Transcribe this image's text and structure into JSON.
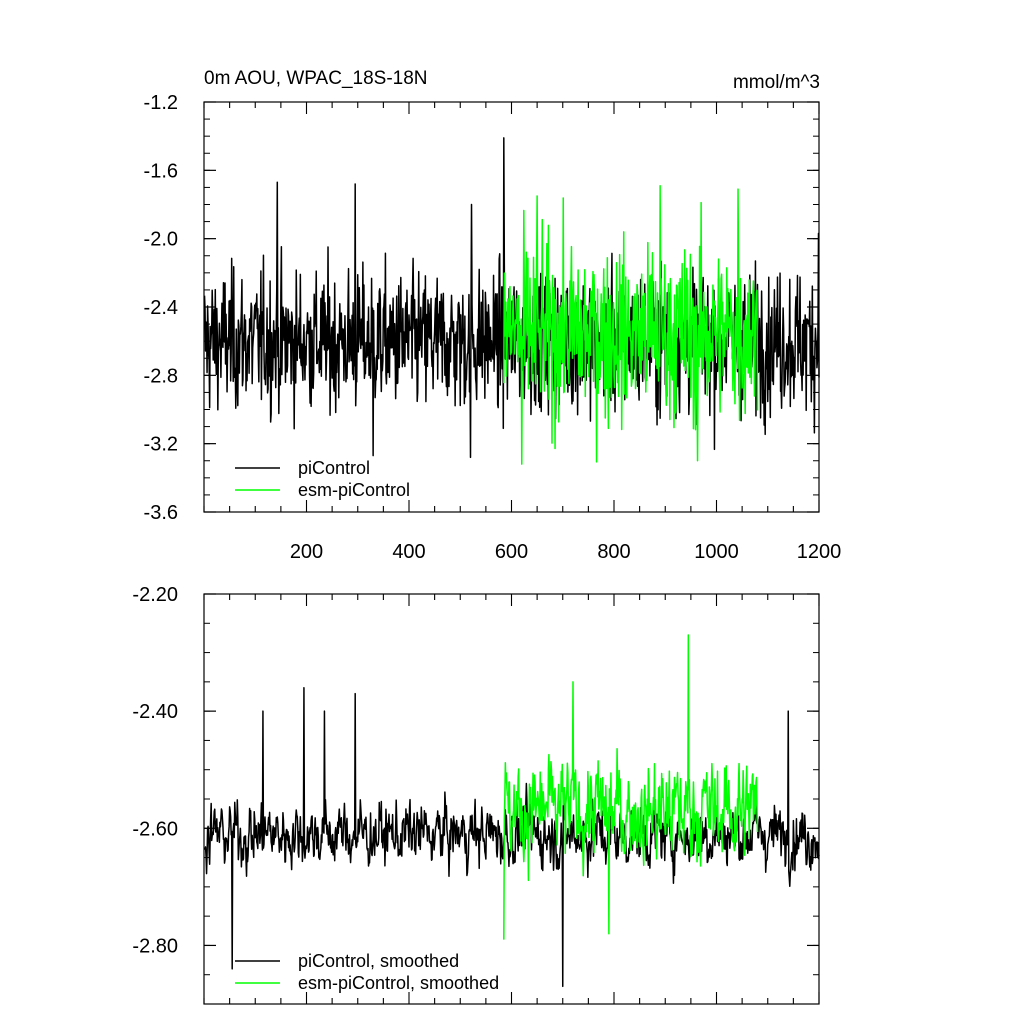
{
  "chart_data": [
    {
      "type": "line",
      "title": "0m AOU, WPAC_18S-18N",
      "units": "mmol/m^3",
      "xlim": [
        0,
        1200
      ],
      "ylim": [
        -3.6,
        -1.2
      ],
      "x_ticks": [
        200,
        400,
        600,
        800,
        1000,
        1200
      ],
      "x_tick_labels": [
        "200",
        "400",
        "600",
        "800",
        "1000",
        "1200"
      ],
      "y_ticks": [
        -1.2,
        -1.6,
        -2.0,
        -2.4,
        -2.8,
        -3.2,
        -3.6
      ],
      "y_tick_labels": [
        "-1.2",
        "-1.6",
        "-2.0",
        "-2.4",
        "-2.8",
        "-3.2",
        "-3.6"
      ],
      "legend_position": "bottom-left",
      "grid": false,
      "series": [
        {
          "name": "piControl",
          "color": "#000000",
          "x_range": [
            1,
            1200
          ],
          "mean": -2.6,
          "spread": 0.2,
          "spikes": [
            [
              143,
              -1.67
            ],
            [
              295,
              -1.68
            ],
            [
              585,
              -1.41
            ],
            [
              522,
              -1.8
            ],
            [
              1199,
              -1.97
            ],
            [
              330,
              -3.27
            ],
            [
              520,
              -3.28
            ]
          ]
        },
        {
          "name": "esm-piControl",
          "color": "#00ff00",
          "x_range": [
            585,
            1080
          ],
          "mean": -2.55,
          "spread": 0.25,
          "spikes": [
            [
              890,
              -1.69
            ],
            [
              1042,
              -1.71
            ],
            [
              650,
              -1.75
            ],
            [
              963,
              -3.3
            ],
            [
              620,
              -3.32
            ]
          ]
        }
      ]
    },
    {
      "type": "line",
      "xlim": [
        0,
        1200
      ],
      "ylim": [
        -2.9,
        -2.2
      ],
      "y_ticks": [
        -2.2,
        -2.4,
        -2.6,
        -2.8
      ],
      "y_tick_labels": [
        "-2.20",
        "-2.40",
        "-2.60",
        "-2.80"
      ],
      "legend_position": "bottom-left",
      "grid": false,
      "series": [
        {
          "name": "piControl, smoothed",
          "color": "#000000",
          "x_range": [
            1,
            1200
          ],
          "mean": -2.61,
          "spread": 0.05,
          "spikes": [
            [
              115,
              -2.4
            ],
            [
              195,
              -2.36
            ],
            [
              235,
              -2.4
            ],
            [
              295,
              -2.37
            ],
            [
              700,
              -2.87
            ],
            [
              55,
              -2.84
            ],
            [
              1140,
              -2.4
            ]
          ]
        },
        {
          "name": "esm-piControl, smoothed",
          "color": "#00ff00",
          "x_range": [
            585,
            1080
          ],
          "mean": -2.57,
          "spread": 0.08,
          "spikes": [
            [
              945,
              -2.27
            ],
            [
              720,
              -2.35
            ],
            [
              790,
              -2.35
            ],
            [
              585,
              -2.79
            ],
            [
              790,
              -2.78
            ]
          ]
        }
      ]
    }
  ]
}
